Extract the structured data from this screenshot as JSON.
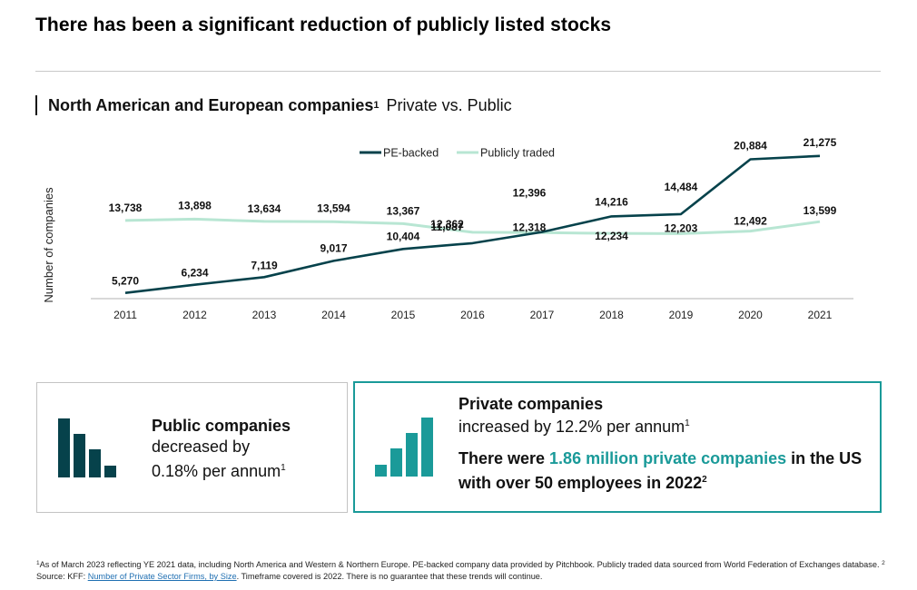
{
  "title": "There has been a significant reduction of publicly listed stocks",
  "subtitle": {
    "bold": "North American and European companies",
    "sup": "1",
    "normal": "Private vs. Public"
  },
  "chart_data": {
    "type": "line",
    "title": "North American and European companies Private vs. Public",
    "xlabel": "",
    "ylabel": "Number of companies",
    "x": [
      "2011",
      "2012",
      "2013",
      "2014",
      "2015",
      "2016",
      "2017",
      "2018",
      "2019",
      "2020",
      "2021"
    ],
    "series": [
      {
        "name": "PE-backed",
        "color": "#06424b",
        "values": [
          5270,
          6234,
          7119,
          9017,
          10404,
          11087,
          12396,
          14216,
          14484,
          20884,
          21275
        ],
        "labels": [
          "5,270",
          "6,234",
          "7,119",
          "9,017",
          "10,404",
          "11,087",
          "12,396",
          "14,216",
          "14,484",
          "20,884",
          "21,275"
        ]
      },
      {
        "name": "Publicly traded",
        "color": "#b8e6d3",
        "values": [
          13738,
          13898,
          13634,
          13594,
          13367,
          12362,
          12318,
          12234,
          12203,
          12492,
          13599
        ],
        "labels": [
          "13,738",
          "13,898",
          "13,634",
          "13,594",
          "13,367",
          "12,362",
          "12,318",
          "12,234",
          "12,203",
          "12,492",
          "13,599"
        ]
      }
    ],
    "ylim": [
      4500,
      22000
    ],
    "grid": false,
    "legend": "top-center"
  },
  "cards": {
    "public": {
      "bold": "Public companies",
      "line2": "decreased by",
      "line3": "0.18% per annum",
      "sup": "1",
      "icon": "bar-chart-decreasing-icon",
      "color": "#06424b"
    },
    "private": {
      "bold": "Private companies",
      "line2": "increased by 12.2% per annum",
      "sup": "1",
      "stat_prefix": "There were ",
      "stat_highlight": "1.86 million private companies",
      "stat_suffix": " in the US with over 50 employees in 2022",
      "stat_sup": "2",
      "icon": "bar-chart-increasing-icon",
      "color": "#1a9a99"
    }
  },
  "footnote": {
    "sup1": "1",
    "text1": "As of March 2023 reflecting YE 2021 data, including North America and Western & Northern Europe. PE-backed company data provided by Pitchbook. Publicly traded data sourced from World Federation of Exchanges database. ",
    "sup2": "2",
    "text2": " Source: KFF: ",
    "link": "Number of Private Sector Firms, by Size",
    "text3": ". Timeframe covered is 2022. There is no guarantee that these trends will continue."
  }
}
